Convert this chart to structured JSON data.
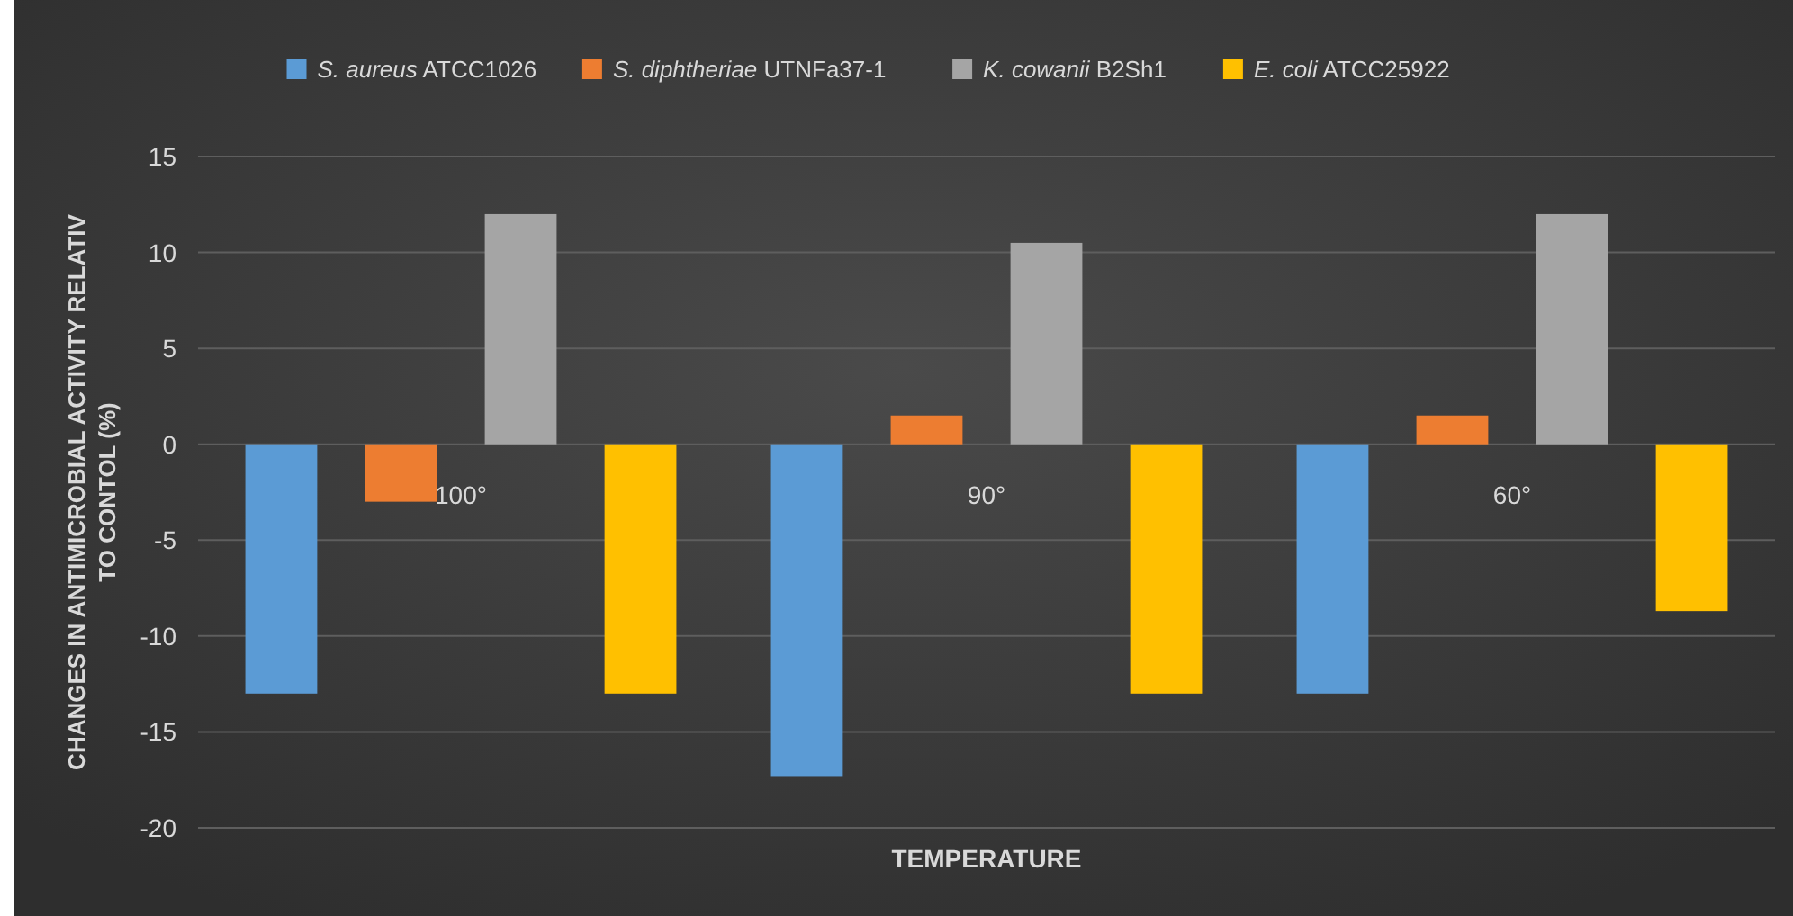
{
  "chart_data": {
    "type": "bar",
    "categories": [
      "100°",
      "90°",
      "60°"
    ],
    "series": [
      {
        "name": "S. aureus ATCC1026",
        "color": "#5b9bd5",
        "values": [
          -13,
          -17.3,
          -13
        ]
      },
      {
        "name": "S. diphtheriae UTNFa37-1",
        "color": "#ed7d31",
        "values": [
          -3,
          1.5,
          1.5
        ]
      },
      {
        "name": "K. cowanii B2Sh1",
        "color": "#a5a5a5",
        "values": [
          12,
          10.5,
          12
        ]
      },
      {
        "name": "E. coli ATCC25922",
        "color": "#ffc000",
        "values": [
          -13,
          -13,
          -8.7
        ]
      }
    ],
    "xlabel": "TEMPERATURE",
    "ylabel": "CHANGES IN ANTIMICROBIAL ACTIVITY RELATIV TO CONTOL (%)",
    "ylim": [
      -20,
      15
    ],
    "yticks": [
      -20,
      -15,
      -10,
      -5,
      0,
      5,
      10,
      15
    ],
    "grid": "y",
    "legend": "top"
  }
}
